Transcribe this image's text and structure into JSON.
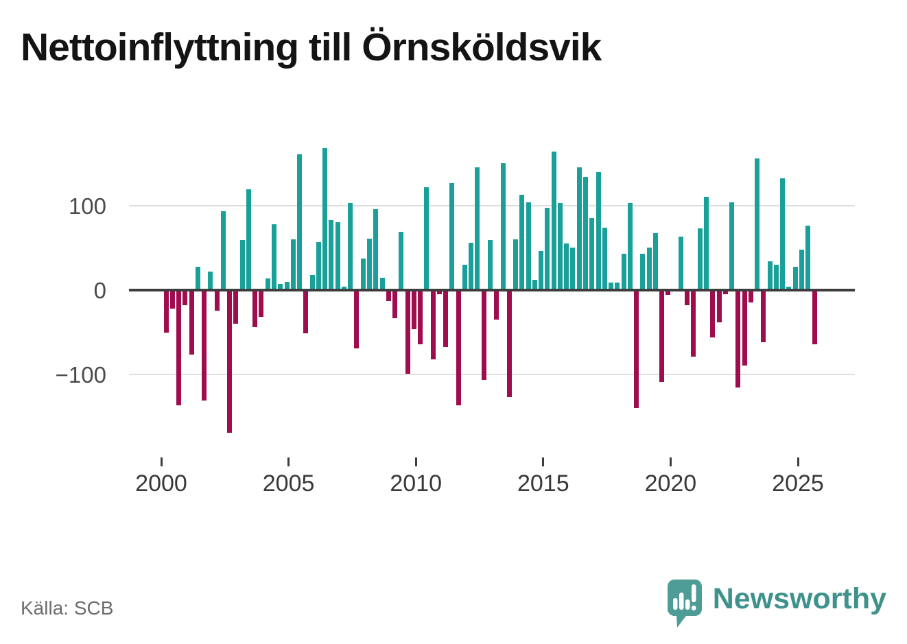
{
  "title": "Nettoinflyttning till Örnsköldsvik",
  "source": "Källa: SCB",
  "branding": {
    "name": "Newsworthy",
    "wordmark_color": "#3f928c",
    "bubble_color": "#4e9c96"
  },
  "chart_data": {
    "type": "bar",
    "title": "Nettoinflyttning till Örnsköldsvik",
    "xlabel": "",
    "ylabel": "",
    "x_ticks": [
      2000,
      2005,
      2010,
      2015,
      2020,
      2025
    ],
    "y_ticks": [
      {
        "label": "100",
        "value": 100
      },
      {
        "label": "0",
        "value": 0
      },
      {
        "label": "−100",
        "value": -100
      }
    ],
    "ylim": [
      -185,
      185
    ],
    "grid": "horizontal",
    "positive_color": "#18a099",
    "negative_color": "#a00d4e",
    "quarters": [
      "2000-Q1",
      "2000-Q2",
      "2000-Q3",
      "2000-Q4",
      "2001-Q1",
      "2001-Q2",
      "2001-Q3",
      "2001-Q4",
      "2002-Q1",
      "2002-Q2",
      "2002-Q3",
      "2002-Q4",
      "2003-Q1",
      "2003-Q2",
      "2003-Q3",
      "2003-Q4",
      "2004-Q1",
      "2004-Q2",
      "2004-Q3",
      "2004-Q4",
      "2005-Q1",
      "2005-Q2",
      "2005-Q3",
      "2005-Q4",
      "2006-Q1",
      "2006-Q2",
      "2006-Q3",
      "2006-Q4",
      "2007-Q1",
      "2007-Q2",
      "2007-Q3",
      "2007-Q4",
      "2008-Q1",
      "2008-Q2",
      "2008-Q3",
      "2008-Q4",
      "2009-Q1",
      "2009-Q2",
      "2009-Q3",
      "2009-Q4",
      "2010-Q1",
      "2010-Q2",
      "2010-Q3",
      "2010-Q4",
      "2011-Q1",
      "2011-Q2",
      "2011-Q3",
      "2011-Q4",
      "2012-Q1",
      "2012-Q2",
      "2012-Q3",
      "2012-Q4",
      "2013-Q1",
      "2013-Q2",
      "2013-Q3",
      "2013-Q4",
      "2014-Q1",
      "2014-Q2",
      "2014-Q3",
      "2014-Q4",
      "2015-Q1",
      "2015-Q2",
      "2015-Q3",
      "2015-Q4",
      "2016-Q1",
      "2016-Q2",
      "2016-Q3",
      "2016-Q4",
      "2017-Q1",
      "2017-Q2",
      "2017-Q3",
      "2017-Q4",
      "2018-Q1",
      "2018-Q2",
      "2018-Q3",
      "2018-Q4",
      "2019-Q1",
      "2019-Q2",
      "2019-Q3",
      "2019-Q4",
      "2020-Q1",
      "2020-Q2",
      "2020-Q3",
      "2020-Q4",
      "2021-Q1",
      "2021-Q2",
      "2021-Q3",
      "2021-Q4",
      "2022-Q1",
      "2022-Q2",
      "2022-Q3",
      "2022-Q4",
      "2023-Q1",
      "2023-Q2",
      "2023-Q3",
      "2023-Q4",
      "2024-Q1",
      "2024-Q2",
      "2024-Q3",
      "2024-Q4",
      "2025-Q1",
      "2025-Q2",
      "2025-Q3"
    ],
    "values": [
      -50,
      -22,
      -136,
      -18,
      -76,
      28,
      -131,
      22,
      -24,
      93,
      -169,
      -40,
      59,
      119,
      -44,
      -32,
      14,
      78,
      7,
      10,
      60,
      161,
      -51,
      18,
      57,
      168,
      83,
      80,
      4,
      103,
      -69,
      37,
      61,
      96,
      15,
      -13,
      -33,
      69,
      -99,
      -46,
      -64,
      122,
      -82,
      -5,
      -67,
      127,
      -136,
      30,
      56,
      145,
      -106,
      59,
      -35,
      150,
      -127,
      60,
      113,
      104,
      12,
      46,
      97,
      164,
      103,
      55,
      50,
      145,
      134,
      85,
      140,
      74,
      9,
      9,
      43,
      103,
      -140,
      43,
      50,
      67,
      -109,
      -6,
      -2,
      63,
      -18,
      -79,
      73,
      110,
      -56,
      -38,
      -5,
      104,
      -115,
      -89,
      -15,
      156,
      -62,
      34,
      30,
      132,
      4,
      28,
      48,
      76,
      -64
    ]
  }
}
